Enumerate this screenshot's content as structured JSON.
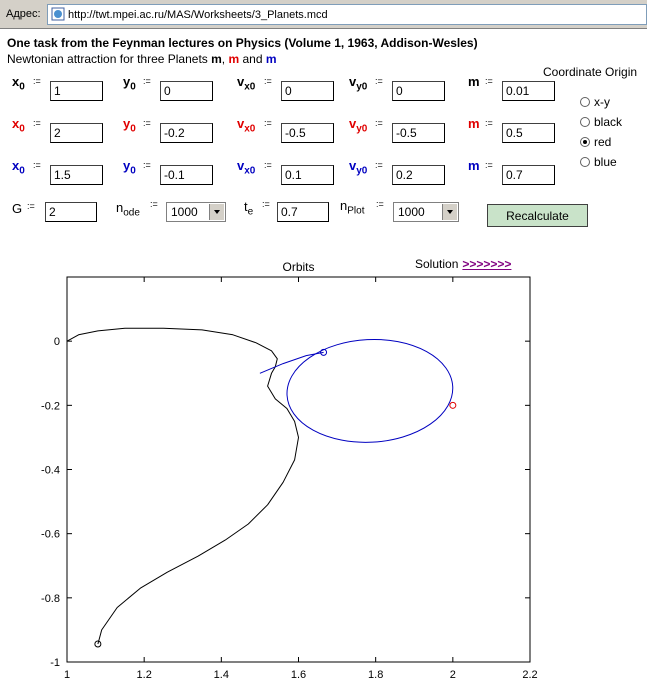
{
  "browser": {
    "address_label": "Адрес:",
    "url": "http://twt.mpei.ac.ru/MAS/Worksheets/3_Planets.mcd"
  },
  "page": {
    "title": "One task from the Feynman lectures on Physics (Volume 1, 1963, Addison-Wesles)",
    "subtitle_prefix": "Newtonian attraction for three Planets",
    "subtitle_m": "m",
    "subtitle_comma": ",",
    "subtitle_and": "and",
    "colors": {
      "black": "#000000",
      "red": "#e00000",
      "blue": "#0000c0"
    }
  },
  "planets": [
    {
      "color": "black",
      "x0": "1",
      "y0": "0",
      "vx0": "0",
      "vy0": "0",
      "m": "0.01"
    },
    {
      "color": "red",
      "x0": "2",
      "y0": "-0.2",
      "vx0": "-0.5",
      "vy0": "-0.5",
      "m": "0.5"
    },
    {
      "color": "blue",
      "x0": "1.5",
      "y0": "-0.1",
      "vx0": "0.1",
      "vy0": "0.2",
      "m": "0.7"
    }
  ],
  "labels": {
    "x": "x",
    "y": "y",
    "v": "v",
    "x0sub": "0",
    "vx": "x0",
    "vy": "y0",
    "m": "m",
    "assign": ":=",
    "G": "G",
    "n": "n",
    "ode": "ode",
    "t": "t",
    "e": "e",
    "Plot": "Plot"
  },
  "params": {
    "G": "2",
    "node": "1000",
    "te": "0.7",
    "nplot": "1000"
  },
  "origin": {
    "title": "Coordinate Origin",
    "options": [
      "x-y",
      "black",
      "red",
      "blue"
    ],
    "selected": "red"
  },
  "recalculate_label": "Recalculate",
  "solution": {
    "label": "Solution",
    "link": ">>>>>>>"
  },
  "chart_data": {
    "type": "line",
    "title": "Orbits",
    "xlim": [
      1,
      2.2
    ],
    "ylim": [
      -1,
      0.2
    ],
    "xticks": [
      "1",
      "1.2",
      "1.4",
      "1.6",
      "1.8",
      "2",
      "2.2"
    ],
    "yticks": [
      "0",
      "-0.2",
      "-0.4",
      "-0.6",
      "-0.8",
      "-1"
    ],
    "series": [
      {
        "color": "#000000",
        "x": [
          1.0,
          1.03,
          1.08,
          1.15,
          1.25,
          1.35,
          1.43,
          1.49,
          1.53,
          1.545,
          1.54,
          1.53,
          1.52,
          1.54,
          1.57,
          1.59,
          1.6,
          1.59,
          1.56,
          1.52,
          1.47,
          1.41,
          1.34,
          1.26,
          1.19,
          1.13,
          1.09,
          1.08
        ],
        "y": [
          0.0,
          0.02,
          0.032,
          0.04,
          0.04,
          0.035,
          0.02,
          -0.005,
          -0.03,
          -0.055,
          -0.08,
          -0.1,
          -0.14,
          -0.18,
          -0.21,
          -0.25,
          -0.3,
          -0.37,
          -0.44,
          -0.51,
          -0.57,
          -0.62,
          -0.67,
          -0.72,
          -0.77,
          -0.83,
          -0.9,
          -0.944
        ]
      },
      {
        "color": "#0000c0",
        "ellipse": {
          "cx": 1.785,
          "cy": -0.155,
          "rx": 0.215,
          "ry": 0.16,
          "rotation_deg": 3
        },
        "x": [
          1.5,
          1.56,
          1.62,
          1.665
        ],
        "y": [
          -0.1,
          -0.07,
          -0.045,
          -0.035
        ]
      }
    ],
    "markers": [
      {
        "x": 1.08,
        "y": -0.944,
        "color": "#000000"
      },
      {
        "x": 2.0,
        "y": -0.2,
        "color": "#e00000"
      },
      {
        "x": 1.665,
        "y": -0.035,
        "color": "#0000c0"
      }
    ]
  }
}
